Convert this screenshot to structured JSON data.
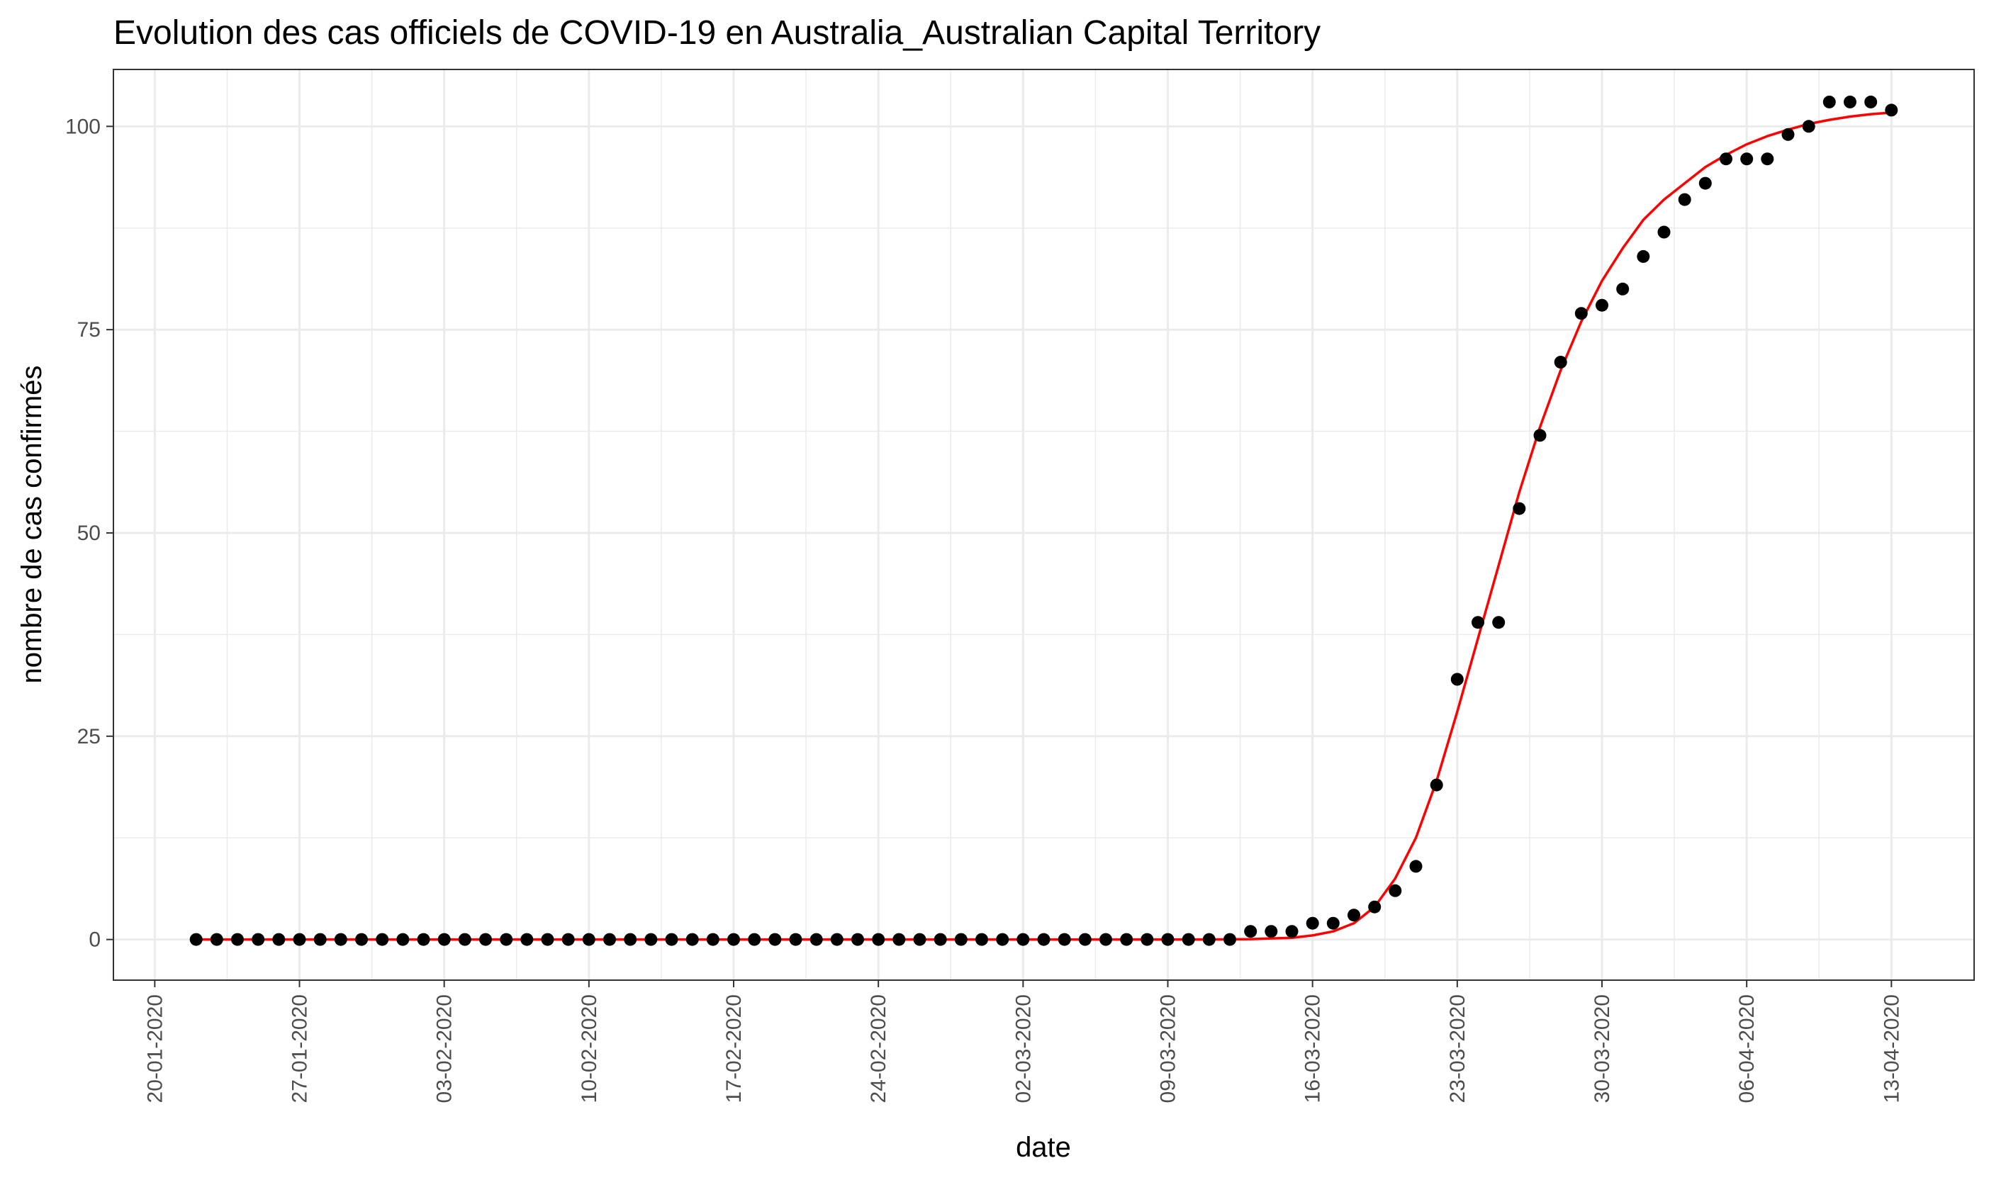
{
  "chart_data": {
    "type": "scatter",
    "title": "Evolution des cas officiels de COVID-19 en Australia_Australian Capital Territory",
    "xlabel": "date",
    "ylabel": "nombre de cas confirmés",
    "x_tick_labels": [
      "20-01-2020",
      "27-01-2020",
      "03-02-2020",
      "10-02-2020",
      "17-02-2020",
      "24-02-2020",
      "02-03-2020",
      "09-03-2020",
      "16-03-2020",
      "23-03-2020",
      "30-03-2020",
      "06-04-2020",
      "13-04-2020"
    ],
    "y_tick_labels": [
      "0",
      "25",
      "50",
      "75",
      "100"
    ],
    "y_ticks": [
      0,
      25,
      50,
      75,
      100
    ],
    "ylim": [
      -5,
      107
    ],
    "xlim": [
      "2020-01-18",
      "2020-04-17"
    ],
    "grid": true,
    "colors": {
      "points": "#000000",
      "fit_line": "#ff0000",
      "grid": "#ebebeb",
      "panel_border": "#333333"
    },
    "series": [
      {
        "kind": "points",
        "x": [
          "2020-01-22",
          "2020-01-23",
          "2020-01-24",
          "2020-01-25",
          "2020-01-26",
          "2020-01-27",
          "2020-01-28",
          "2020-01-29",
          "2020-01-30",
          "2020-01-31",
          "2020-02-01",
          "2020-02-02",
          "2020-02-03",
          "2020-02-04",
          "2020-02-05",
          "2020-02-06",
          "2020-02-07",
          "2020-02-08",
          "2020-02-09",
          "2020-02-10",
          "2020-02-11",
          "2020-02-12",
          "2020-02-13",
          "2020-02-14",
          "2020-02-15",
          "2020-02-16",
          "2020-02-17",
          "2020-02-18",
          "2020-02-19",
          "2020-02-20",
          "2020-02-21",
          "2020-02-22",
          "2020-02-23",
          "2020-02-24",
          "2020-02-25",
          "2020-02-26",
          "2020-02-27",
          "2020-02-28",
          "2020-02-29",
          "2020-03-01",
          "2020-03-02",
          "2020-03-03",
          "2020-03-04",
          "2020-03-05",
          "2020-03-06",
          "2020-03-07",
          "2020-03-08",
          "2020-03-09",
          "2020-03-10",
          "2020-03-11",
          "2020-03-12",
          "2020-03-13",
          "2020-03-14",
          "2020-03-15",
          "2020-03-16",
          "2020-03-17",
          "2020-03-18",
          "2020-03-19",
          "2020-03-20",
          "2020-03-21",
          "2020-03-22",
          "2020-03-23",
          "2020-03-24",
          "2020-03-25",
          "2020-03-26",
          "2020-03-27",
          "2020-03-28",
          "2020-03-29",
          "2020-03-30",
          "2020-03-31",
          "2020-04-01",
          "2020-04-02",
          "2020-04-03",
          "2020-04-04",
          "2020-04-05",
          "2020-04-06",
          "2020-04-07",
          "2020-04-08",
          "2020-04-09",
          "2020-04-10",
          "2020-04-11",
          "2020-04-12",
          "2020-04-13"
        ],
        "y": [
          0,
          0,
          0,
          0,
          0,
          0,
          0,
          0,
          0,
          0,
          0,
          0,
          0,
          0,
          0,
          0,
          0,
          0,
          0,
          0,
          0,
          0,
          0,
          0,
          0,
          0,
          0,
          0,
          0,
          0,
          0,
          0,
          0,
          0,
          0,
          0,
          0,
          0,
          0,
          0,
          0,
          0,
          0,
          0,
          0,
          0,
          0,
          0,
          0,
          0,
          0,
          1,
          1,
          1,
          2,
          2,
          3,
          4,
          6,
          9,
          19,
          32,
          39,
          39,
          53,
          62,
          71,
          77,
          78,
          80,
          84,
          87,
          91,
          93,
          96,
          96,
          96,
          99,
          100,
          103,
          103,
          103,
          102
        ]
      },
      {
        "kind": "line",
        "x": [
          "2020-01-22",
          "2020-02-05",
          "2020-02-19",
          "2020-03-04",
          "2020-03-11",
          "2020-03-13",
          "2020-03-15",
          "2020-03-16",
          "2020-03-17",
          "2020-03-18",
          "2020-03-19",
          "2020-03-20",
          "2020-03-21",
          "2020-03-22",
          "2020-03-23",
          "2020-03-24",
          "2020-03-25",
          "2020-03-26",
          "2020-03-27",
          "2020-03-28",
          "2020-03-29",
          "2020-03-30",
          "2020-03-31",
          "2020-04-01",
          "2020-04-02",
          "2020-04-03",
          "2020-04-04",
          "2020-04-05",
          "2020-04-06",
          "2020-04-07",
          "2020-04-08",
          "2020-04-09",
          "2020-04-10",
          "2020-04-11",
          "2020-04-12",
          "2020-04-13"
        ],
        "y": [
          0,
          0,
          0,
          0,
          0,
          0.05,
          0.2,
          0.5,
          1.0,
          2.0,
          4.0,
          7.5,
          12.5,
          19.5,
          28,
          37,
          46,
          55,
          63,
          70,
          76,
          81,
          85,
          88.5,
          91,
          93,
          95,
          96.5,
          97.8,
          98.8,
          99.6,
          100.3,
          100.8,
          101.2,
          101.5,
          101.7
        ]
      }
    ]
  }
}
